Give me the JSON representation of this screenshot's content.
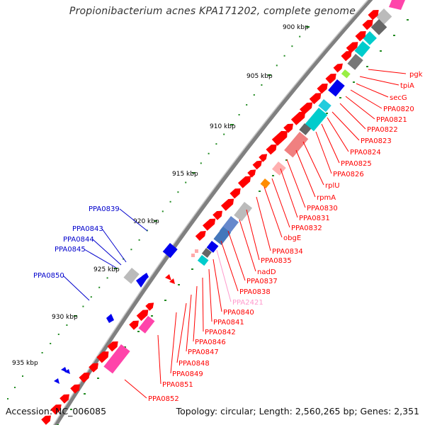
{
  "title": "Propionibacterium acnes KPA171202, complete genome",
  "accession": "Accession: NC_006085",
  "topology": "Topology: circular; Length: 2,560,265 bp; Genes: 2,351",
  "colors": {
    "backbone": "#808080",
    "right_labels": "#ff0000",
    "left_labels": "#0000cc",
    "highlight_label": "#ff99cc",
    "tick_green": "#228b22",
    "gene_red": "#ff0000",
    "gene_blue": "#0000ee",
    "gene_cyan": "#00cccc",
    "gene_grey": "#808080",
    "gene_pink": "#ff44aa",
    "gene_salmon": "#f08080",
    "gene_orange": "#ff8c00",
    "gene_lightgreen": "#99ee44"
  },
  "scale": {
    "labels": [
      "900 kbp",
      "905 kbp",
      "910 kbp",
      "915 kbp",
      "920 kbp",
      "925 kbp",
      "930 kbp",
      "935 kbp"
    ]
  },
  "right_labels": [
    {
      "text": "pgk",
      "color": "red"
    },
    {
      "text": "tpiA",
      "color": "red"
    },
    {
      "text": "secG",
      "color": "red"
    },
    {
      "text": "PPA0820",
      "color": "red"
    },
    {
      "text": "PPA0821",
      "color": "red"
    },
    {
      "text": "PPA0822",
      "color": "red"
    },
    {
      "text": "PPA0823",
      "color": "red"
    },
    {
      "text": "PPA0824",
      "color": "red"
    },
    {
      "text": "PPA0825",
      "color": "red"
    },
    {
      "text": "PPA0826",
      "color": "red"
    },
    {
      "text": "rplU",
      "color": "red"
    },
    {
      "text": "rpmA",
      "color": "red"
    },
    {
      "text": "PPA0830",
      "color": "red"
    },
    {
      "text": "PPA0831",
      "color": "red"
    },
    {
      "text": "PPA0832",
      "color": "red"
    },
    {
      "text": "obgE",
      "color": "red"
    },
    {
      "text": "PPA0834",
      "color": "red"
    },
    {
      "text": "PPA0835",
      "color": "red"
    },
    {
      "text": "nadD",
      "color": "red"
    },
    {
      "text": "PPA0837",
      "color": "red"
    },
    {
      "text": "PPA0838",
      "color": "red"
    },
    {
      "text": "PPA2421",
      "color": "pink"
    },
    {
      "text": "PPA0840",
      "color": "red"
    },
    {
      "text": "PPA0841",
      "color": "red"
    },
    {
      "text": "PPA0842",
      "color": "red"
    },
    {
      "text": "PPA0846",
      "color": "red"
    },
    {
      "text": "PPA0847",
      "color": "red"
    },
    {
      "text": "PPA0848",
      "color": "red"
    },
    {
      "text": "PPA0849",
      "color": "red"
    },
    {
      "text": "PPA0851",
      "color": "red"
    },
    {
      "text": "PPA0852",
      "color": "red"
    }
  ],
  "left_labels": [
    {
      "text": "PPA0839"
    },
    {
      "text": "PPA0843"
    },
    {
      "text": "PPA0844"
    },
    {
      "text": "PPA0845"
    },
    {
      "text": "PPA0850"
    }
  ]
}
